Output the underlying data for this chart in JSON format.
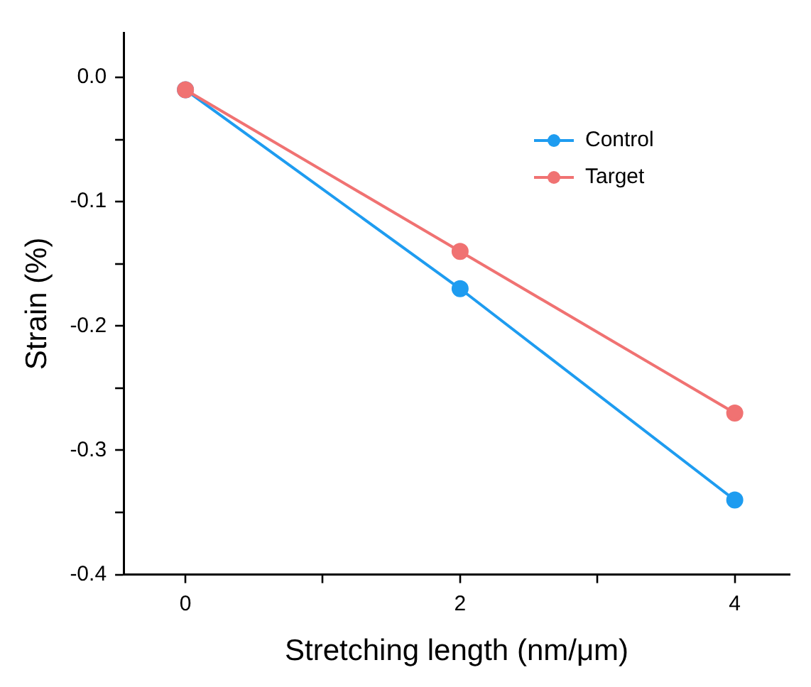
{
  "chart_data": {
    "type": "line",
    "xlabel": "Stretching length (nm/μm)",
    "ylabel": "Strain (%)",
    "x": [
      0,
      2,
      4
    ],
    "series": [
      {
        "name": "Control",
        "color": "#1e9cf0",
        "values": [
          -0.01,
          -0.17,
          -0.34
        ]
      },
      {
        "name": "Target",
        "color": "#f07272",
        "values": [
          -0.01,
          -0.14,
          -0.27
        ]
      }
    ],
    "xlim": [
      -0.45,
      4.4
    ],
    "xticks": [
      0,
      {
        "value": 1,
        "label": null
      },
      2,
      {
        "value": 3,
        "label": null
      },
      4
    ],
    "ylim": [
      -0.4,
      0.036
    ],
    "yticks": [
      {
        "value": -0.4,
        "label": "-0.4"
      },
      {
        "value": -0.35,
        "label": null
      },
      {
        "value": -0.3,
        "label": "-0.3"
      },
      {
        "value": -0.25,
        "label": null
      },
      {
        "value": -0.2,
        "label": "-0.2"
      },
      {
        "value": -0.15,
        "label": null
      },
      {
        "value": -0.1,
        "label": "-0.1"
      },
      {
        "value": -0.05,
        "label": null
      },
      {
        "value": 0,
        "label": "0.0"
      }
    ],
    "legend": "top right",
    "marker": "circle",
    "line_style": "solid",
    "grid": false
  }
}
